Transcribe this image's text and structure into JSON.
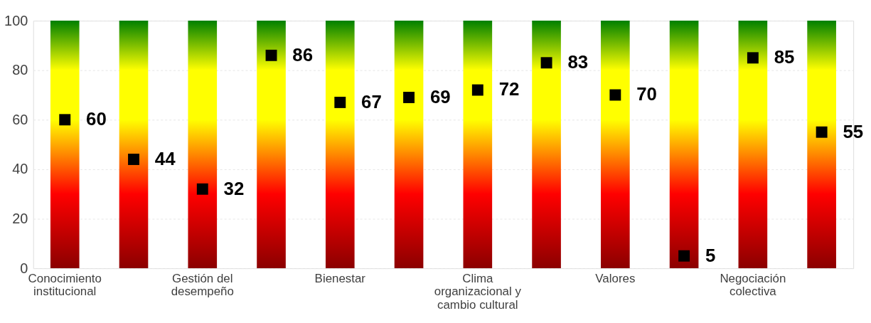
{
  "chart_data": {
    "type": "scatter",
    "categories": [
      "Conocimiento institucional",
      null,
      "Gestión del desempeño",
      null,
      "Bienestar",
      null,
      "Clima organizacional y cambio cultural",
      null,
      "Valores",
      null,
      "Negociación colectiva",
      null
    ],
    "series": [
      {
        "type": "bar",
        "values": [
          100,
          100,
          100,
          100,
          100,
          100,
          100,
          100,
          100,
          100,
          100,
          100
        ]
      },
      {
        "color": "#000000",
        "marker": "square",
        "values": [
          60,
          44,
          32,
          86,
          67,
          69,
          72,
          83,
          70,
          5,
          85,
          55
        ],
        "value_labels": [
          "60",
          "44",
          "32",
          "86",
          "67",
          "69",
          "72",
          "83",
          "70",
          "5",
          "85",
          "55"
        ]
      }
    ],
    "ylim": [
      0,
      100
    ],
    "yticks": [
      0,
      20,
      40,
      60,
      80,
      100
    ],
    "grid": "y"
  }
}
